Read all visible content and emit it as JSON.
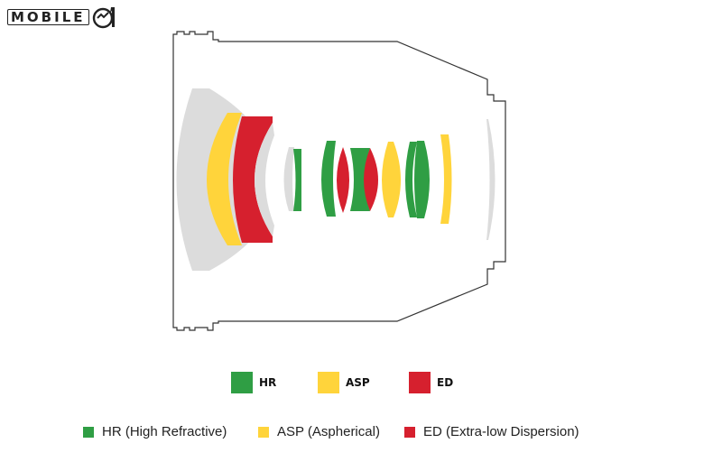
{
  "watermark": {
    "text": "MOBILE",
    "logo_icon": "mobile01-logo-icon"
  },
  "colors": {
    "hr": "#2f9e44",
    "asp": "#ffd43b",
    "ed": "#d6202e",
    "standard": "#dcdcdc",
    "barrel_outline": "#333333"
  },
  "legend_primary": [
    {
      "key": "hr",
      "label": "HR"
    },
    {
      "key": "asp",
      "label": "ASP"
    },
    {
      "key": "ed",
      "label": "ED"
    }
  ],
  "legend_secondary": [
    {
      "key": "hr",
      "label": "HR (High Refractive)"
    },
    {
      "key": "asp",
      "label": "ASP (Aspherical)"
    },
    {
      "key": "ed",
      "label": "ED (Extra-low Dispersion)"
    }
  ],
  "elements": [
    {
      "id": 1,
      "type": "standard"
    },
    {
      "id": 2,
      "type": "asp"
    },
    {
      "id": 3,
      "type": "ed"
    },
    {
      "id": 4,
      "type": "standard"
    },
    {
      "id": 5,
      "type": "hr"
    },
    {
      "id": 6,
      "type": "hr"
    },
    {
      "id": 7,
      "type": "ed"
    },
    {
      "id": 8,
      "type": "hr"
    },
    {
      "id": 9,
      "type": "ed"
    },
    {
      "id": 10,
      "type": "asp"
    },
    {
      "id": 11,
      "type": "hr"
    },
    {
      "id": 12,
      "type": "hr"
    },
    {
      "id": 13,
      "type": "asp"
    },
    {
      "id": 14,
      "type": "standard"
    }
  ]
}
